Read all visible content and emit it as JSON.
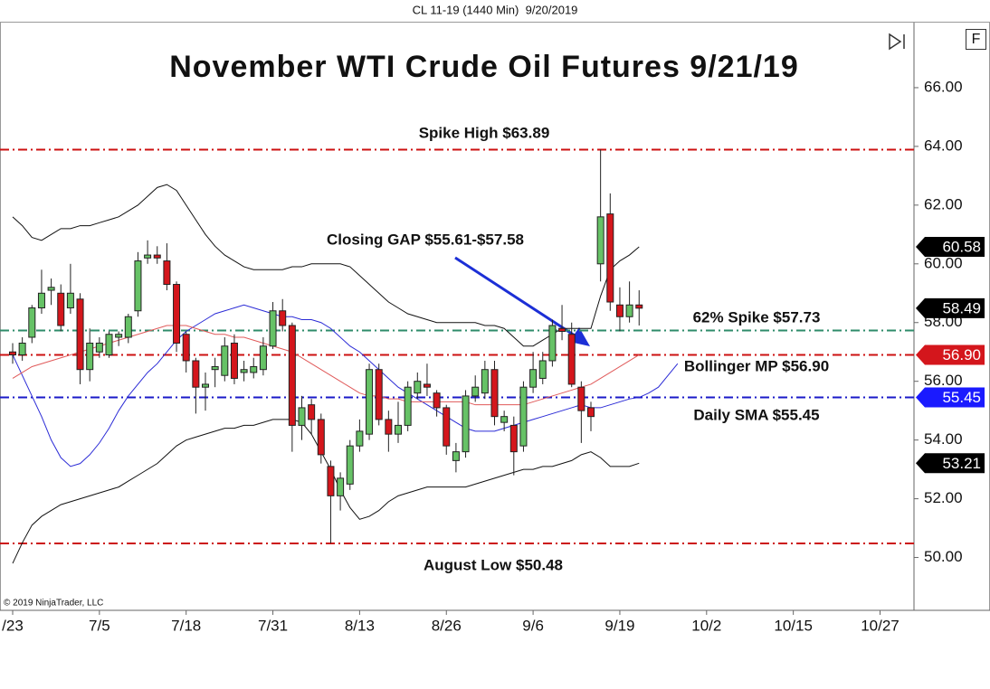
{
  "header": "CL 11-19 (1440 Min)  9/20/2019",
  "footer": "© 2019 NinjaTrader, LLC",
  "button_label": "F",
  "chart_data": {
    "type": "candlestick",
    "title": "November WTI Crude Oil Futures 9/21/19",
    "annotations": [
      {
        "text": "Closing GAP $55.61-$57.58"
      }
    ],
    "categories": [
      "/23",
      null,
      null,
      null,
      null,
      null,
      null,
      null,
      null,
      "7/5",
      null,
      null,
      null,
      null,
      null,
      null,
      null,
      null,
      "7/18",
      null,
      null,
      null,
      null,
      null,
      null,
      null,
      null,
      "7/31",
      null,
      null,
      null,
      null,
      null,
      null,
      null,
      null,
      "8/13",
      null,
      null,
      null,
      null,
      null,
      null,
      null,
      null,
      "8/26",
      null,
      null,
      null,
      null,
      null,
      null,
      null,
      null,
      "9/6",
      null,
      null,
      null,
      null,
      null,
      null,
      null,
      null,
      "9/19",
      null,
      null,
      null,
      null,
      null,
      null,
      null,
      null,
      "10/2",
      null,
      null,
      null,
      null,
      null,
      null,
      null,
      null,
      "10/15",
      null,
      null,
      null,
      null,
      null,
      null,
      null,
      null,
      "10/27",
      null,
      null,
      null
    ],
    "open": [
      57.0,
      56.9,
      57.5,
      58.5,
      59.1,
      59.0,
      58.5,
      58.8,
      56.4,
      57.0,
      56.9,
      57.5,
      57.5,
      58.4,
      60.2,
      60.3,
      60.1,
      59.3,
      57.6,
      56.7,
      55.8,
      56.4,
      56.2,
      57.3,
      56.3,
      56.3,
      56.4,
      57.2,
      58.4,
      57.9,
      54.5,
      55.2,
      54.7,
      53.1,
      52.1,
      52.5,
      53.8,
      54.2,
      56.4,
      54.7,
      54.2,
      54.5,
      55.6,
      55.9,
      55.6,
      55.1,
      53.3,
      53.6,
      55.5,
      55.6,
      56.4,
      54.6,
      54.5,
      53.8,
      55.8,
      56.1,
      56.7,
      57.8,
      57.6,
      55.8,
      55.1,
      60.0,
      61.7,
      58.6,
      58.2,
      58.6,
      null,
      null,
      null,
      null,
      null,
      null,
      null,
      null,
      null,
      null,
      null,
      null,
      null,
      null,
      null,
      null,
      null,
      null,
      null,
      null,
      null,
      null,
      null,
      null,
      null,
      null,
      null,
      null
    ],
    "high": [
      57.3,
      57.5,
      58.6,
      59.8,
      59.5,
      59.3,
      60.0,
      59.0,
      57.8,
      57.5,
      57.7,
      57.7,
      58.3,
      60.4,
      60.8,
      60.6,
      60.7,
      59.4,
      57.7,
      56.8,
      56.3,
      56.8,
      57.5,
      57.6,
      56.7,
      56.8,
      57.5,
      58.7,
      58.8,
      58.0,
      55.5,
      55.4,
      54.9,
      53.3,
      52.9,
      54.0,
      54.7,
      56.6,
      56.6,
      55.0,
      55.3,
      56.0,
      56.3,
      56.6,
      55.7,
      55.2,
      53.9,
      55.7,
      56.2,
      56.7,
      56.7,
      55.0,
      54.8,
      56.0,
      57.0,
      57.0,
      58.1,
      58.6,
      58.0,
      56.0,
      55.3,
      63.89,
      62.4,
      59.2,
      59.4,
      59.1,
      null,
      null,
      null,
      null,
      null,
      null,
      null,
      null,
      null,
      null,
      null,
      null,
      null,
      null,
      null,
      null,
      null,
      null,
      null,
      null,
      null,
      null,
      null,
      null,
      null,
      null,
      null,
      null
    ],
    "low": [
      56.6,
      56.7,
      57.3,
      58.3,
      58.6,
      57.7,
      58.3,
      55.9,
      56.0,
      56.8,
      56.8,
      57.2,
      57.3,
      58.2,
      60.0,
      60.0,
      59.1,
      57.0,
      56.3,
      54.9,
      55.0,
      55.8,
      56.0,
      55.9,
      56.0,
      56.1,
      56.2,
      57.1,
      57.7,
      53.6,
      54.0,
      54.2,
      53.2,
      50.48,
      51.6,
      52.3,
      53.6,
      54.0,
      54.5,
      53.6,
      53.9,
      54.3,
      55.4,
      55.5,
      54.8,
      53.5,
      52.9,
      53.4,
      55.3,
      55.4,
      54.5,
      54.3,
      52.8,
      53.6,
      55.6,
      55.9,
      56.5,
      57.4,
      55.8,
      53.9,
      54.3,
      59.4,
      58.4,
      57.7,
      58.0,
      57.9,
      null,
      null,
      null,
      null,
      null,
      null,
      null,
      null,
      null,
      null,
      null,
      null,
      null,
      null,
      null,
      null,
      null,
      null,
      null,
      null,
      null,
      null,
      null,
      null,
      null,
      null,
      null,
      null
    ],
    "close": [
      56.9,
      57.3,
      58.5,
      59.0,
      59.2,
      57.9,
      59.0,
      56.4,
      57.3,
      57.3,
      57.6,
      57.6,
      58.2,
      60.1,
      60.3,
      60.2,
      59.3,
      57.3,
      56.7,
      55.8,
      55.9,
      56.5,
      57.2,
      56.1,
      56.4,
      56.5,
      57.2,
      58.4,
      57.9,
      54.5,
      55.1,
      54.7,
      53.5,
      52.1,
      52.7,
      53.8,
      54.3,
      56.4,
      54.7,
      54.2,
      54.5,
      55.8,
      56.0,
      55.8,
      55.1,
      53.8,
      53.6,
      55.5,
      55.8,
      56.4,
      54.8,
      54.8,
      53.6,
      55.8,
      56.4,
      56.7,
      57.9,
      57.7,
      55.9,
      55.0,
      54.8,
      61.6,
      58.7,
      58.2,
      58.6,
      58.49,
      null,
      null,
      null,
      null,
      null,
      null,
      null,
      null,
      null,
      null,
      null,
      null,
      null,
      null,
      null,
      null,
      null,
      null,
      null,
      null,
      null,
      null,
      null,
      null,
      null,
      null,
      null,
      null
    ],
    "up_color": "#66c266",
    "down_color": "#d4161c",
    "overlays": [
      {
        "color": "#111111",
        "values": [
          61.6,
          61.3,
          60.9,
          60.8,
          61.0,
          61.2,
          61.2,
          61.3,
          61.3,
          61.4,
          61.5,
          61.6,
          61.8,
          62.0,
          62.3,
          62.6,
          62.7,
          62.5,
          62.0,
          61.5,
          61.0,
          60.6,
          60.3,
          60.1,
          59.9,
          59.8,
          59.8,
          59.8,
          59.8,
          59.9,
          59.9,
          60.0,
          60.0,
          60.0,
          60.0,
          59.9,
          59.6,
          59.3,
          59.0,
          58.7,
          58.5,
          58.3,
          58.2,
          58.1,
          58.0,
          58.0,
          58.0,
          58.0,
          58.0,
          57.9,
          57.9,
          57.8,
          57.5,
          57.2,
          57.2,
          57.4,
          57.6,
          57.8,
          57.8,
          57.8,
          57.8,
          58.9,
          59.8,
          60.1,
          60.3,
          60.58,
          null,
          null,
          null,
          null,
          null,
          null,
          null,
          null,
          null,
          null,
          null,
          null,
          null,
          null,
          null,
          null,
          null,
          null,
          null,
          null,
          null,
          null,
          null,
          null,
          null,
          null,
          null,
          null
        ]
      },
      {
        "color": "#111111",
        "values": [
          49.8,
          50.5,
          51.1,
          51.4,
          51.6,
          51.8,
          51.9,
          52.0,
          52.1,
          52.2,
          52.3,
          52.4,
          52.6,
          52.8,
          53.0,
          53.2,
          53.5,
          53.8,
          54.0,
          54.1,
          54.2,
          54.3,
          54.4,
          54.4,
          54.5,
          54.5,
          54.6,
          54.7,
          54.7,
          54.7,
          54.6,
          54.2,
          53.6,
          53.0,
          52.3,
          51.7,
          51.3,
          51.4,
          51.6,
          51.9,
          52.1,
          52.2,
          52.3,
          52.4,
          52.4,
          52.4,
          52.4,
          52.4,
          52.5,
          52.6,
          52.7,
          52.8,
          52.9,
          53.0,
          53.0,
          53.1,
          53.1,
          53.2,
          53.3,
          53.5,
          53.6,
          53.4,
          53.1,
          53.1,
          53.1,
          53.21,
          null,
          null,
          null,
          null,
          null,
          null,
          null,
          null,
          null,
          null,
          null,
          null,
          null,
          null,
          null,
          null,
          null,
          null,
          null,
          null,
          null,
          null,
          null,
          null,
          null,
          null,
          null,
          null
        ]
      },
      {
        "color": "#2b2bd6",
        "values": [
          56.9,
          56.2,
          55.5,
          54.8,
          54.0,
          53.4,
          53.1,
          53.2,
          53.5,
          53.9,
          54.4,
          55.0,
          55.5,
          55.9,
          56.3,
          56.6,
          57.0,
          57.4,
          57.7,
          57.9,
          58.1,
          58.3,
          58.4,
          58.5,
          58.6,
          58.5,
          58.4,
          58.3,
          58.2,
          58.2,
          58.1,
          58.1,
          58.0,
          57.8,
          57.5,
          57.2,
          57.0,
          56.7,
          56.4,
          56.1,
          55.8,
          55.6,
          55.4,
          55.2,
          55.0,
          54.8,
          54.6,
          54.4,
          54.3,
          54.3,
          54.3,
          54.4,
          54.5,
          54.6,
          54.7,
          54.8,
          54.9,
          55.0,
          55.1,
          55.2,
          55.1,
          55.1,
          55.2,
          55.3,
          55.4,
          55.45,
          55.6,
          55.8,
          56.2,
          56.6,
          null,
          null,
          null,
          null,
          null,
          null,
          null,
          null,
          null,
          null,
          null,
          null,
          null,
          null,
          null,
          null,
          null,
          null,
          null,
          null,
          null,
          null,
          null,
          null
        ]
      },
      {
        "color": "#e05a5a",
        "values": [
          56.1,
          56.3,
          56.5,
          56.6,
          56.7,
          56.8,
          56.9,
          57.0,
          57.1,
          57.2,
          57.3,
          57.4,
          57.5,
          57.6,
          57.7,
          57.8,
          57.9,
          57.9,
          57.9,
          57.8,
          57.7,
          57.6,
          57.6,
          57.5,
          57.5,
          57.4,
          57.3,
          57.2,
          57.1,
          57.0,
          56.8,
          56.6,
          56.4,
          56.2,
          56.0,
          55.8,
          55.6,
          55.5,
          55.5,
          55.4,
          55.4,
          55.3,
          55.3,
          55.3,
          55.3,
          55.3,
          55.3,
          55.3,
          55.2,
          55.2,
          55.2,
          55.2,
          55.2,
          55.2,
          55.3,
          55.4,
          55.5,
          55.6,
          55.7,
          55.8,
          55.9,
          56.1,
          56.3,
          56.5,
          56.7,
          56.9,
          null,
          null,
          null,
          null,
          null,
          null,
          null,
          null,
          null,
          null,
          null,
          null,
          null,
          null,
          null,
          null,
          null,
          null,
          null,
          null,
          null,
          null,
          null,
          null,
          null,
          null,
          null,
          null
        ]
      }
    ],
    "levels": [
      {
        "value": 63.89,
        "label": "Spike High $63.89",
        "color": "#cc1111"
      },
      {
        "value": 57.73,
        "label": "62% Spike $57.73",
        "color": "#2e8b6a"
      },
      {
        "value": 56.9,
        "label": "Bollinger MP $56.90",
        "color": "#cc1111"
      },
      {
        "value": 55.45,
        "label": "Daily SMA $55.45",
        "color": "#1a1ac8"
      },
      {
        "value": 50.48,
        "label": "August Low $50.48",
        "color": "#cc1111"
      }
    ],
    "price_tags": [
      {
        "value": 60.58,
        "label": "60.58",
        "color": "#000000"
      },
      {
        "value": 58.49,
        "label": "58.49",
        "color": "#000000"
      },
      {
        "value": 56.9,
        "label": "56.90",
        "color": "#d4161c"
      },
      {
        "value": 55.45,
        "label": "55.45",
        "color": "#1a1aff"
      },
      {
        "value": 53.21,
        "label": "53.21",
        "color": "#000000"
      }
    ],
    "ylim": [
      48.2,
      68.0
    ],
    "yticks": [
      {
        "value": 50,
        "label": "50.00"
      },
      {
        "value": 52,
        "label": "52.00"
      },
      {
        "value": 54,
        "label": "54.00"
      },
      {
        "value": 56,
        "label": "56.00"
      },
      {
        "value": 58,
        "label": "58.00"
      },
      {
        "value": 60,
        "label": "60.00"
      },
      {
        "value": 62,
        "label": "62.00"
      },
      {
        "value": 64,
        "label": "64.00"
      },
      {
        "value": 66,
        "label": "66.00"
      }
    ]
  }
}
